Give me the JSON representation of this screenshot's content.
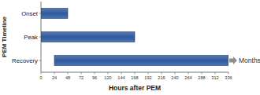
{
  "chart_data": {
    "type": "bar",
    "orientation": "horizontal",
    "x_label": "Hours after PEM",
    "y_label": "PEM Timeline",
    "categories": [
      "Onset",
      "Peak",
      "Recovery"
    ],
    "starts": [
      0,
      0,
      24
    ],
    "values": [
      48,
      168,
      336
    ],
    "color": "#2f5a9e",
    "annotation": "Months",
    "xlim": [
      0,
      336
    ],
    "xticks": [
      0,
      24,
      48,
      72,
      96,
      120,
      144,
      168,
      192,
      216,
      240,
      264,
      288,
      312,
      336
    ],
    "grid": false
  }
}
